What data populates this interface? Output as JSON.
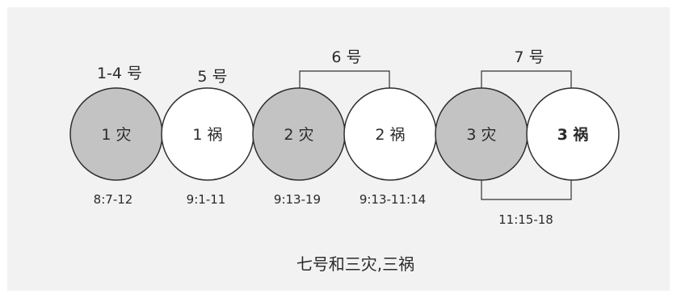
{
  "top_labels": {
    "trumpets_1_4": "1-4 号",
    "trumpet_5": "5 号",
    "trumpet_6": "6 号",
    "trumpet_7": "7 号"
  },
  "nodes": [
    {
      "label": "1 灾",
      "filled": true
    },
    {
      "label": "1 祸",
      "filled": false
    },
    {
      "label": "2 灾",
      "filled": true
    },
    {
      "label": "2 祸",
      "filled": false
    },
    {
      "label": "3 灾",
      "filled": true
    },
    {
      "label": "3 祸",
      "filled": false
    }
  ],
  "references": {
    "node_1": "8:7-12",
    "node_2": "9:1-11",
    "node_3": "9:13-19",
    "node_4": "9:13-11:14",
    "trumpet_7_range": "11:15-18"
  },
  "caption": "七号和三灾,三祸",
  "colors": {
    "panel_background": "#f2f2f2",
    "filled_node": "#c3c3c3",
    "empty_node": "#ffffff",
    "stroke": "#2e2e2e",
    "text": "#2a2a2a"
  }
}
